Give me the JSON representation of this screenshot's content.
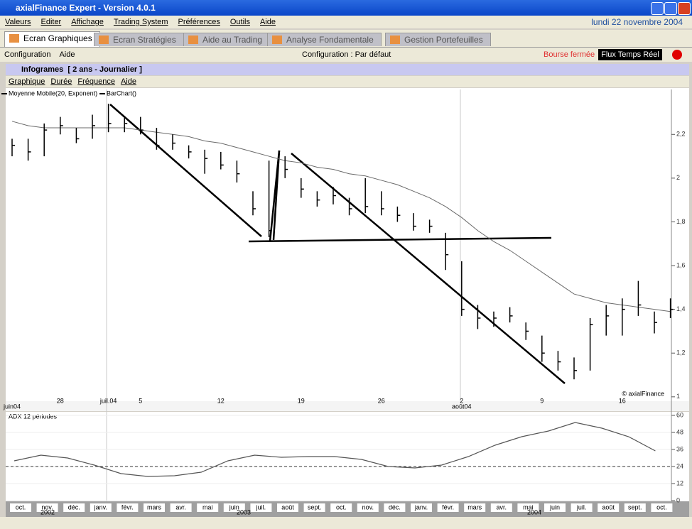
{
  "window": {
    "title": "axialFinance Expert - Version 4.0.1",
    "menu": [
      "Valeurs",
      "Editer",
      "Affichage",
      "Trading System",
      "Préférences",
      "Outils",
      "Aide"
    ],
    "date": "lundi 22 novembre 2004"
  },
  "tabs": [
    "Ecran Graphiques",
    "Ecran Stratégies",
    "Aide au Trading",
    "Analyse Fondamentale",
    "Gestion Portefeuilles"
  ],
  "toolbar": {
    "items": [
      "Configuration",
      "Aide"
    ],
    "config": "Configuration : Par défaut",
    "market_status": "Bourse fermée",
    "feed": "Flux Temps Réel"
  },
  "chart_window": {
    "title": "Infogrames  [ 2 ans - Journalier ]",
    "menu": [
      "Graphique",
      "Durée",
      "Fréquence",
      "Aide"
    ]
  },
  "chart_data": [
    {
      "type": "ohlc",
      "watermark": "© axialFinance",
      "categories": [
        "juin04",
        null,
        null,
        "28",
        null,
        null,
        "juil.04",
        null,
        "5",
        null,
        null,
        null,
        null,
        "12",
        null,
        null,
        null,
        null,
        "19",
        null,
        null,
        null,
        null,
        "26",
        null,
        null,
        null,
        null,
        "2",
        null,
        null,
        null,
        null,
        "9",
        null,
        null,
        null,
        null,
        "16",
        null,
        null,
        null
      ],
      "sublabels": [
        null,
        null,
        null,
        null,
        null,
        null,
        null,
        null,
        null,
        null,
        null,
        null,
        null,
        null,
        null,
        null,
        null,
        null,
        null,
        null,
        null,
        null,
        null,
        null,
        null,
        null,
        null,
        null,
        "août04",
        null,
        null,
        null,
        null,
        null,
        null,
        null,
        null,
        null,
        null,
        null,
        null,
        null
      ],
      "series": [
        {
          "name": "Moyenne Mobile(20, Exponent)",
          "type": "line",
          "color": "#6a6a6a",
          "values": [
            2.26,
            2.24,
            2.23,
            2.23,
            2.23,
            2.23,
            2.23,
            2.23,
            2.22,
            2.21,
            2.2,
            2.19,
            2.17,
            2.16,
            2.14,
            2.12,
            2.1,
            2.08,
            2.07,
            2.05,
            2.04,
            2.02,
            2.01,
            1.99,
            1.97,
            1.94,
            1.91,
            1.87,
            1.82,
            1.76,
            1.71,
            1.67,
            1.62,
            1.57,
            1.52,
            1.47,
            1.45,
            1.43,
            1.42,
            1.41,
            1.4,
            1.39
          ]
        },
        {
          "name": "BarChart()",
          "type": "bar",
          "color": "#000000",
          "high": [
            2.18,
            2.18,
            2.25,
            2.28,
            2.23,
            2.29,
            2.34,
            2.28,
            2.28,
            2.23,
            2.2,
            2.15,
            2.13,
            2.12,
            2.08,
            1.94,
            2.08,
            2.1,
            2.0,
            1.94,
            1.96,
            1.91,
            2.0,
            1.94,
            1.87,
            1.84,
            1.81,
            1.75,
            1.62,
            1.42,
            1.39,
            1.41,
            1.34,
            1.28,
            1.21,
            1.18,
            1.36,
            1.42,
            1.45,
            1.53,
            1.39,
            1.45
          ],
          "low": [
            2.1,
            2.08,
            2.1,
            2.2,
            2.16,
            2.18,
            2.21,
            2.21,
            2.2,
            2.13,
            2.13,
            2.09,
            2.02,
            2.04,
            1.98,
            1.83,
            1.73,
            2.0,
            1.91,
            1.87,
            1.88,
            1.83,
            1.84,
            1.83,
            1.8,
            1.76,
            1.75,
            1.58,
            1.37,
            1.31,
            1.32,
            1.34,
            1.26,
            1.16,
            1.12,
            1.08,
            1.12,
            1.28,
            1.28,
            1.37,
            1.29,
            1.36
          ],
          "close": [
            2.15,
            2.12,
            2.22,
            2.24,
            2.18,
            2.24,
            2.25,
            2.25,
            2.22,
            2.15,
            2.16,
            2.12,
            2.09,
            2.06,
            2.02,
            1.86,
            1.76,
            2.04,
            1.95,
            1.9,
            1.92,
            1.86,
            1.87,
            1.86,
            1.83,
            1.78,
            1.78,
            1.65,
            1.4,
            1.36,
            1.36,
            1.37,
            1.3,
            1.2,
            1.16,
            1.12,
            1.33,
            1.37,
            1.4,
            1.42,
            1.34,
            1.4
          ]
        }
      ],
      "ylim": [
        0.98,
        2.36
      ],
      "yticks": [
        1,
        {
          "value": 1.2,
          "label": "1,2"
        },
        {
          "value": 1.4,
          "label": "1,4"
        },
        {
          "value": 1.6,
          "label": "1,6"
        },
        {
          "value": 1.8,
          "label": "1,8"
        },
        2,
        {
          "value": 2.2,
          "label": "2,2"
        }
      ]
    },
    {
      "type": "line",
      "title": "ADX 12 périodes",
      "color": "#555555",
      "reference_line": 24,
      "categories": [
        "oct.",
        "nov.",
        "déc.",
        "janv.",
        "févr.",
        "mars",
        "avr.",
        "mai",
        "juin",
        "juil.",
        "août",
        "sept.",
        "oct.",
        "nov.",
        "déc.",
        "janv.",
        "févr.",
        "mars",
        "avr.",
        "mai",
        "juin",
        "juil.",
        "août",
        "sept.",
        "oct."
      ],
      "years": [
        "2002",
        "2003",
        "2004"
      ],
      "values": [
        28,
        32,
        30,
        25,
        19,
        17,
        17.5,
        20,
        28,
        32,
        30.5,
        31,
        31,
        29,
        24,
        23,
        25,
        31,
        39,
        45,
        49,
        55,
        51,
        45,
        35
      ],
      "ylim": [
        0,
        61
      ],
      "yticks": [
        0,
        12,
        24,
        36,
        48,
        60
      ]
    }
  ]
}
